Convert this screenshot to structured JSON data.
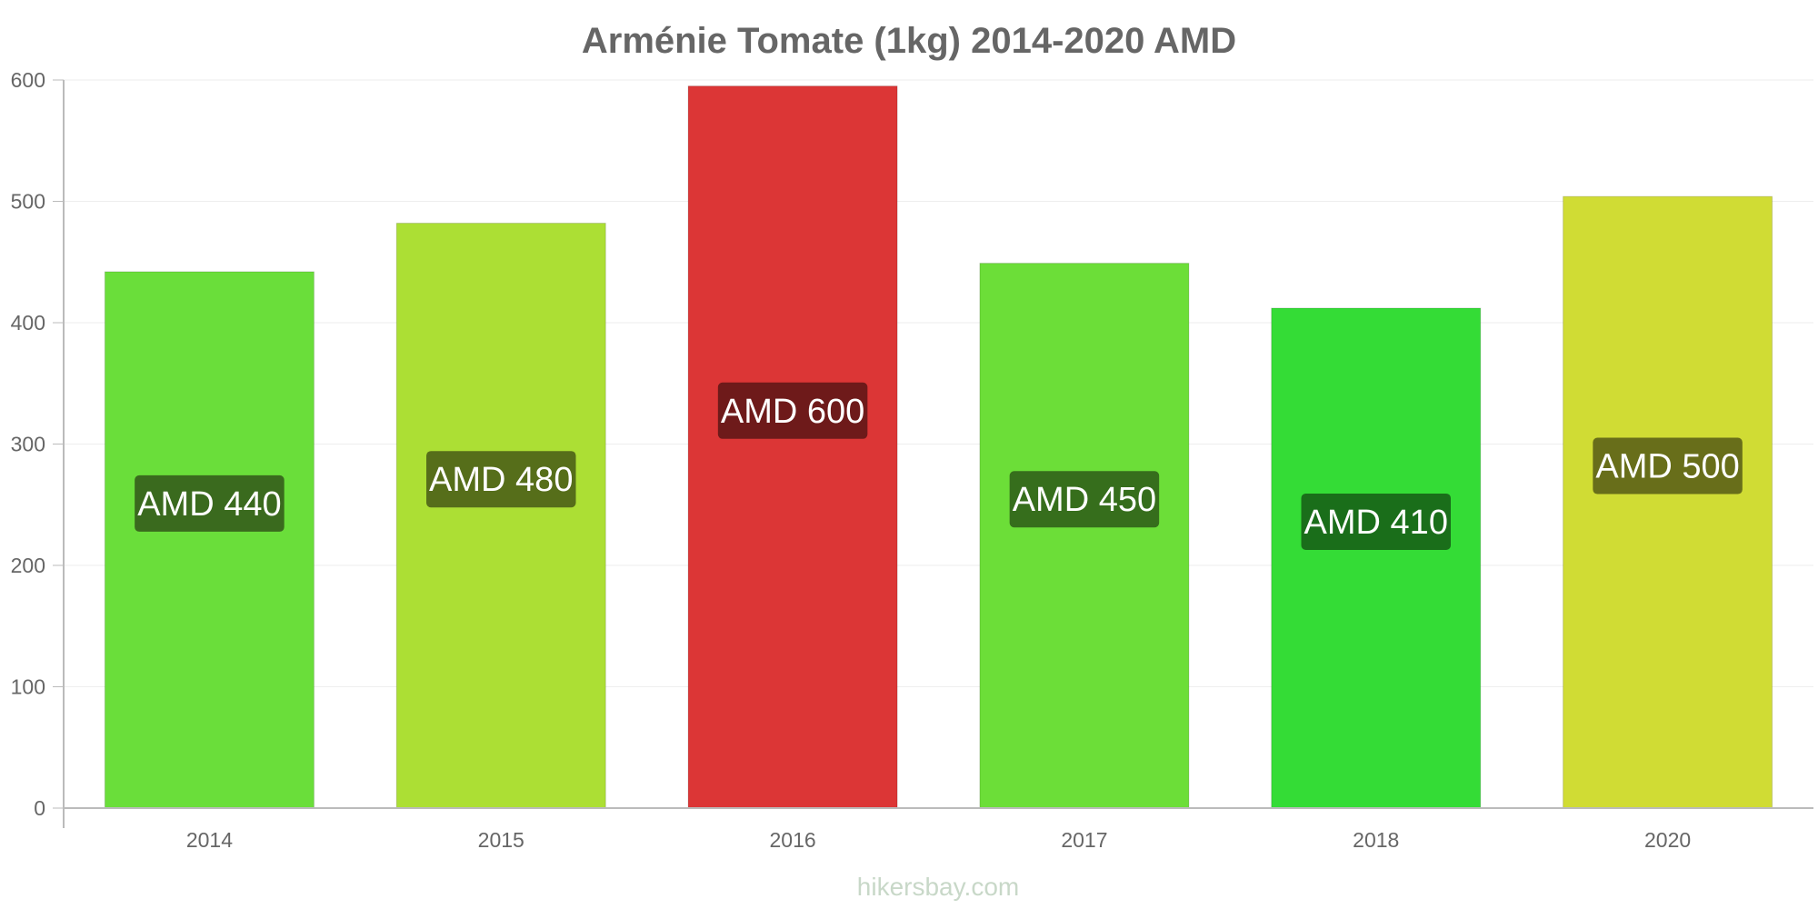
{
  "chart_data": {
    "type": "bar",
    "title": "Arménie Tomate (1kg) 2014-2020 AMD",
    "xlabel": "",
    "ylabel": "",
    "categories": [
      "2014",
      "2015",
      "2016",
      "2017",
      "2018",
      "2020"
    ],
    "values": [
      442,
      482,
      595,
      449,
      412,
      504
    ],
    "data_labels": [
      "AMD 440",
      "AMD 480",
      "AMD 600",
      "AMD 450",
      "AMD 410",
      "AMD 500"
    ],
    "bar_colors": [
      "#6ade3a",
      "#acdf34",
      "#dc3636",
      "#6cde38",
      "#34dc36",
      "#d0dc34"
    ],
    "label_colors": [
      "#3a6a1e",
      "#566e1a",
      "#6e1a1a",
      "#366e1c",
      "#1a6e1a",
      "#686e1a"
    ],
    "ylim": [
      0,
      600
    ],
    "yticks": [
      0,
      100,
      200,
      300,
      400,
      500,
      600
    ],
    "grid": true,
    "legend": "none"
  },
  "watermark": "hikersbay.com"
}
